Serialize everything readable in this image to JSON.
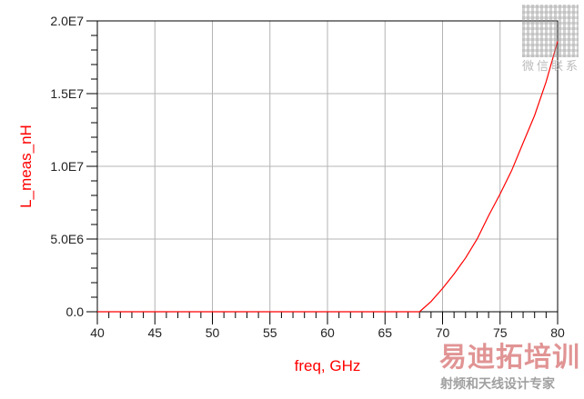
{
  "chart_data": {
    "type": "line",
    "title": "",
    "xlabel": "freq, GHz",
    "ylabel": "L_meas_nH",
    "xlim": [
      40,
      80
    ],
    "ylim": [
      0,
      20000000
    ],
    "x_ticks": [
      "40",
      "45",
      "50",
      "55",
      "60",
      "65",
      "70",
      "75",
      "80"
    ],
    "y_ticks": [
      "0.0",
      "5.0E6",
      "1.0E7",
      "1.5E7",
      "2.0E7"
    ],
    "grid": true,
    "series": [
      {
        "color": "#ff0000",
        "x": [
          40,
          50,
          60,
          67.5,
          68,
          69,
          70,
          71,
          72,
          73,
          74,
          75,
          76,
          77,
          78,
          79,
          80
        ],
        "y": [
          0,
          0,
          0,
          0,
          0,
          700000,
          1600000,
          2600000,
          3700000,
          5000000,
          6600000,
          8100000,
          9700000,
          11600000,
          13500000,
          15800000,
          18600000
        ]
      }
    ]
  },
  "watermark": {
    "brand": "易迪拓培训",
    "slogan": "射频和天线设计专家",
    "contact": "微信联系"
  }
}
